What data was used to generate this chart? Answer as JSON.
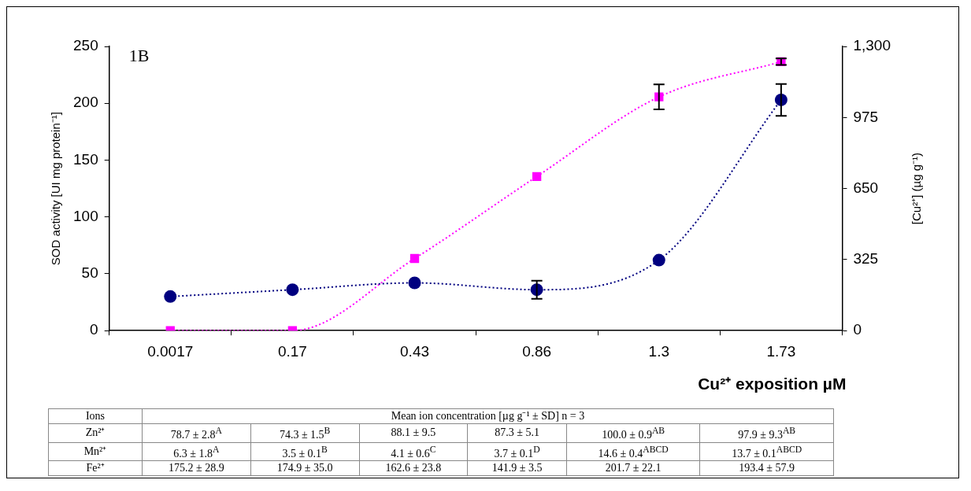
{
  "chart_data": [
    {
      "type": "line",
      "categories": [
        "0.0017",
        "0.17",
        "0.43",
        "0.86",
        "1.3",
        "1.73"
      ],
      "xlabel": "Cu²⁺ exposition µM",
      "ylabel": "SOD activity [UI mg protein⁻¹]",
      "y2label": "[Cu²⁺] (µg g⁻¹)",
      "annotations": [
        "1B"
      ],
      "series": [
        {
          "color": "#000080",
          "marker": "circle",
          "line_style": "dotted",
          "values": [
            30,
            36,
            42,
            36,
            62,
            203
          ],
          "errors": [
            null,
            null,
            null,
            8,
            null,
            14
          ]
        },
        {
          "color": "#ff00ff",
          "marker": "square",
          "line_style": "dotted",
          "axis": "y2",
          "values": [
            0,
            0,
            330,
            705,
            1069,
            1230
          ],
          "errors": [
            null,
            null,
            null,
            null,
            57,
            15
          ]
        }
      ],
      "ylim": [
        0,
        250
      ],
      "yticks": [
        0,
        50,
        100,
        150,
        200,
        250
      ],
      "y2lim": [
        0,
        1300
      ],
      "y2ticks": [
        0,
        325,
        650,
        975,
        {
          "value": 1300,
          "label": "1,300"
        }
      ],
      "grid": false,
      "legend": false
    },
    {
      "type": "other",
      "annotations": [
        "Ions",
        "Mean ion concentration [µg g⁻¹ ± SD]  n = 3",
        "Zn²⁺",
        "78.7 ± 2.8$^{A}$",
        "74.3 ± 1.5$^{B}$",
        "88.1 ± 9.5",
        "87.3 ± 5.1",
        "100.0 ± 0.9$^{AB}$",
        "97.9 ± 9.3$^{AB}$",
        "Mn²⁺",
        "6.3 ± 1.8$^{A}$",
        "3.5 ± 0.1$^{B}$",
        "4.1 ± 0.6$^{C}$",
        "3.7 ± 0.1$^{D}$",
        "14.6 ± 0.4$^{ABCD}$",
        "13.7 ± 0.1$^{ABCD}$",
        "Fe²⁺",
        "175.2 ± 28.9",
        "174.9 ± 35.0",
        "162.6 ± 23.8",
        "141.9 ± 3.5",
        "201.7 ± 22.1",
        "193.4 ± 57.9"
      ]
    }
  ]
}
